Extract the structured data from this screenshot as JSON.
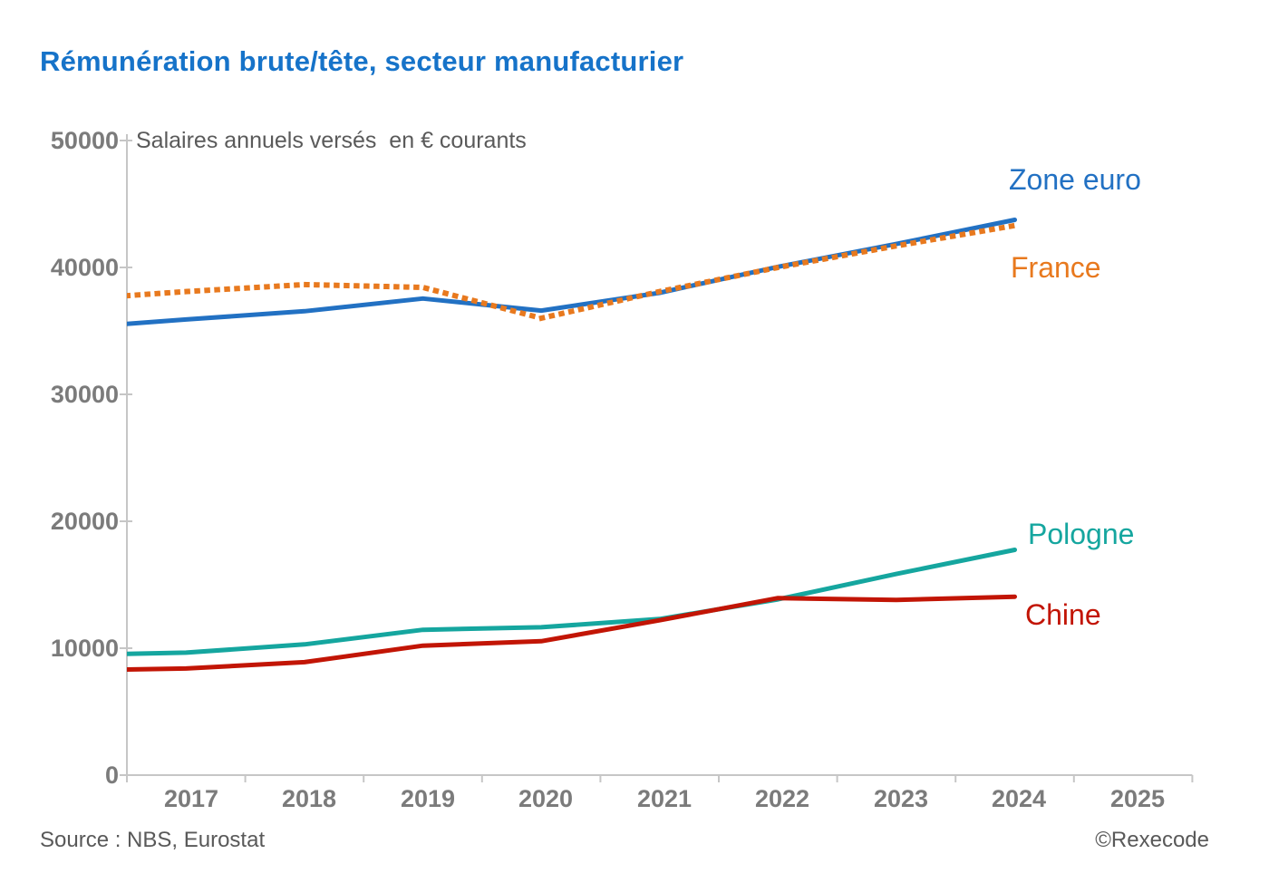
{
  "title": "Rémunération brute/tête, secteur manufacturier",
  "footer": {
    "source": "Source : NBS, Eurostat",
    "copyright": "©Rexecode"
  },
  "colors": {
    "title_blue": "#1673C9",
    "axis_line": "#c6c6c6",
    "axis_text": "#7b7b7b",
    "subtitle_gray": "#5a5a5a",
    "footer_gray": "#595959"
  },
  "chart_data": {
    "type": "line",
    "subtitle": "Salaires annuels versés  en € courants",
    "x": [
      2016,
      2017,
      2018,
      2019,
      2020,
      2021,
      2022,
      2023,
      2024
    ],
    "xlim": [
      2016.5,
      2025.5
    ],
    "ylim": [
      0,
      50000
    ],
    "grid": false,
    "legend_position": "inline-right-of-lines",
    "x_tick_labels": [
      "2017",
      "2018",
      "2019",
      "2020",
      "2021",
      "2022",
      "2023",
      "2024",
      "2025"
    ],
    "y_tick_labels": [
      "0",
      "10000",
      "20000",
      "30000",
      "40000",
      "50000"
    ],
    "y_ticks": [
      0,
      10000,
      20000,
      30000,
      40000,
      50000
    ],
    "series": [
      {
        "name": "Zone euro",
        "color": "#2271C3",
        "style": "solid",
        "values": [
          35200,
          35900,
          36550,
          37550,
          36600,
          38000,
          40050,
          41850,
          43750
        ]
      },
      {
        "name": "France",
        "color": "#E8791E",
        "style": "dotted",
        "values": [
          37450,
          38100,
          38650,
          38430,
          36000,
          38100,
          40000,
          41700,
          43300
        ]
      },
      {
        "name": "Pologne",
        "color": "#15A69F",
        "style": "solid",
        "values": [
          9450,
          9650,
          10300,
          11450,
          11650,
          12300,
          13850,
          15850,
          17750
        ]
      },
      {
        "name": "Chine",
        "color": "#C21505",
        "style": "solid",
        "values": [
          8250,
          8400,
          8900,
          10200,
          10550,
          12200,
          13950,
          13800,
          14060
        ]
      }
    ]
  }
}
